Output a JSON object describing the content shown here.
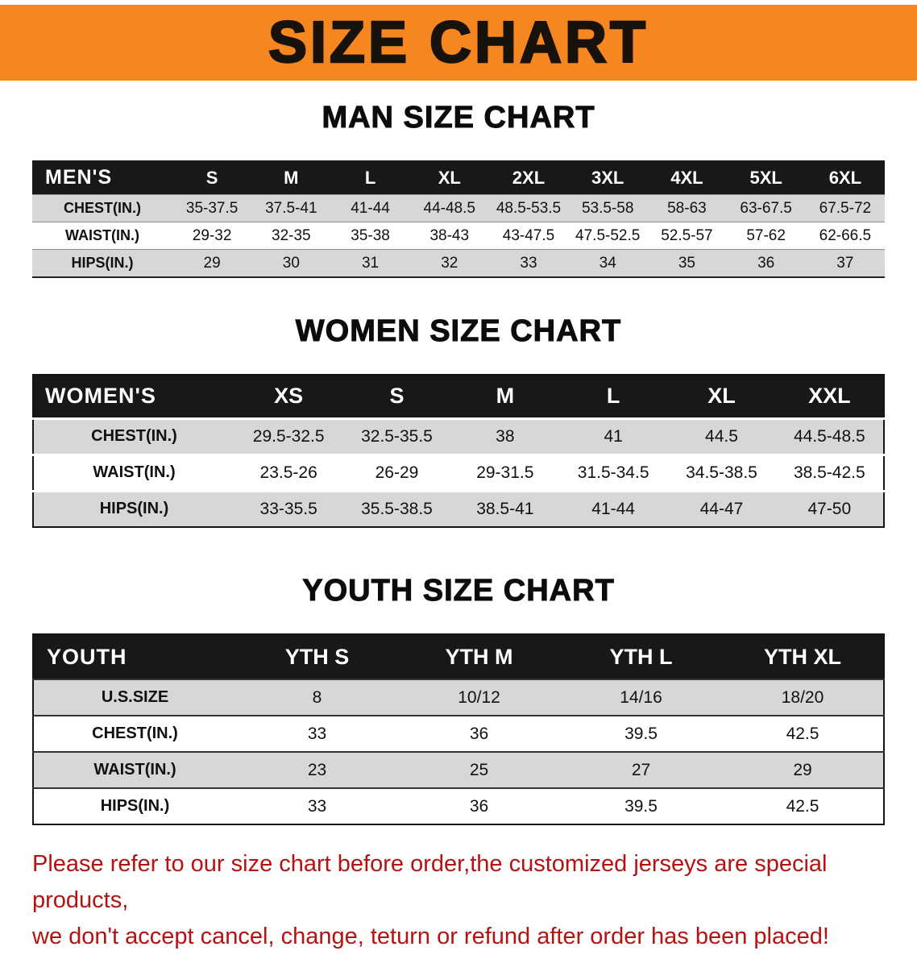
{
  "banner": {
    "title": "SIZE CHART"
  },
  "colors": {
    "banner_bg": "#f6861f",
    "table_header_bg": "#181818",
    "row_gray": "#d7d7d7",
    "disclaimer_red": "#b51212"
  },
  "men": {
    "heading": "MAN SIZE CHART",
    "label": "MEN'S",
    "columns": [
      "S",
      "M",
      "L",
      "XL",
      "2XL",
      "3XL",
      "4XL",
      "5XL",
      "6XL"
    ],
    "rows": [
      {
        "label": "CHEST(IN.)",
        "values": [
          "35-37.5",
          "37.5-41",
          "41-44",
          "44-48.5",
          "48.5-53.5",
          "53.5-58",
          "58-63",
          "63-67.5",
          "67.5-72"
        ]
      },
      {
        "label": "WAIST(IN.)",
        "values": [
          "29-32",
          "32-35",
          "35-38",
          "38-43",
          "43-47.5",
          "47.5-52.5",
          "52.5-57",
          "57-62",
          "62-66.5"
        ]
      },
      {
        "label": "HIPS(IN.)",
        "values": [
          "29",
          "30",
          "31",
          "32",
          "33",
          "34",
          "35",
          "36",
          "37"
        ]
      }
    ]
  },
  "women": {
    "heading": "WOMEN SIZE CHART",
    "label": "WOMEN'S",
    "columns": [
      "XS",
      "S",
      "M",
      "L",
      "XL",
      "XXL"
    ],
    "rows": [
      {
        "label": "CHEST(IN.)",
        "values": [
          "29.5-32.5",
          "32.5-35.5",
          "38",
          "41",
          "44.5",
          "44.5-48.5"
        ]
      },
      {
        "label": "WAIST(IN.)",
        "values": [
          "23.5-26",
          "26-29",
          "29-31.5",
          "31.5-34.5",
          "34.5-38.5",
          "38.5-42.5"
        ]
      },
      {
        "label": "HIPS(IN.)",
        "values": [
          "33-35.5",
          "35.5-38.5",
          "38.5-41",
          "41-44",
          "44-47",
          "47-50"
        ]
      }
    ]
  },
  "youth": {
    "heading": "YOUTH SIZE CHART",
    "label": "YOUTH",
    "columns": [
      "YTH S",
      "YTH M",
      "YTH L",
      "YTH XL"
    ],
    "rows": [
      {
        "label": "U.S.SIZE",
        "values": [
          "8",
          "10/12",
          "14/16",
          "18/20"
        ]
      },
      {
        "label": "CHEST(IN.)",
        "values": [
          "33",
          "36",
          "39.5",
          "42.5"
        ]
      },
      {
        "label": "WAIST(IN.)",
        "values": [
          "23",
          "25",
          "27",
          "29"
        ]
      },
      {
        "label": "HIPS(IN.)",
        "values": [
          "33",
          "36",
          "39.5",
          "42.5"
        ]
      }
    ]
  },
  "disclaimer": {
    "line1": "Please refer to our size chart before order,the customized jerseys are special products,",
    "line2": "we don't accept cancel, change, teturn or refund after order has been placed!"
  }
}
